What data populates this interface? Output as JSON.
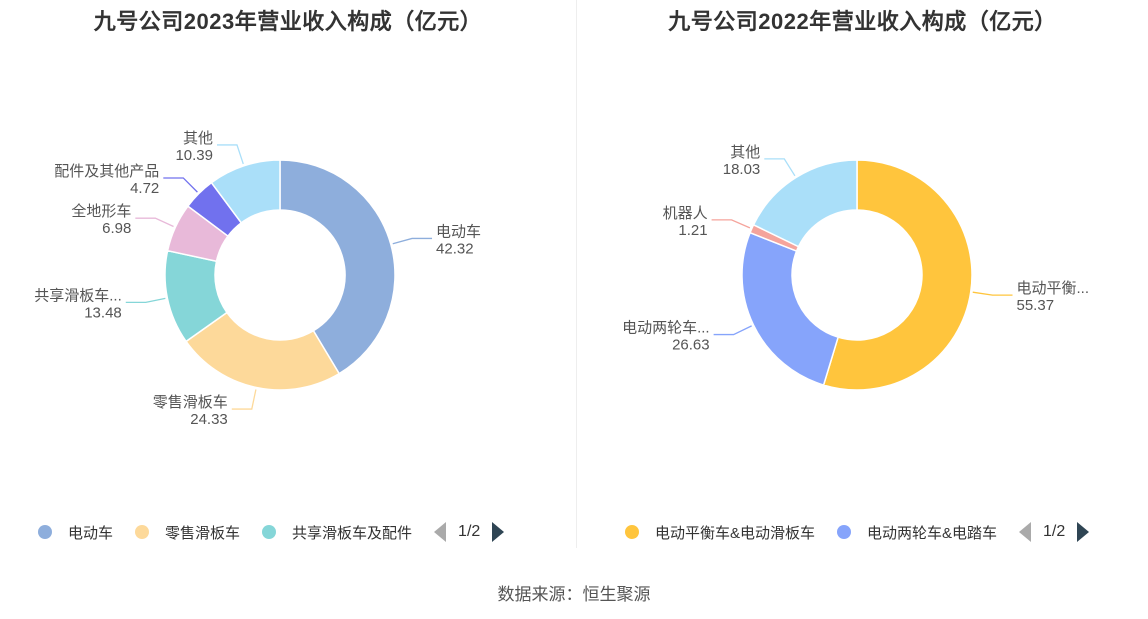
{
  "source_text": "数据来源：恒生聚源",
  "chart_data": [
    {
      "type": "pie",
      "donut": true,
      "title": "九号公司2023年营业收入构成（亿元）",
      "slices": [
        {
          "name": "电动车",
          "label": "电动车",
          "value": 42.32,
          "color": "#8eaedc"
        },
        {
          "name": "零售滑板车",
          "label": "零售滑板车",
          "value": 24.33,
          "color": "#fdd99a"
        },
        {
          "name": "共享滑板车及配件",
          "label": "共享滑板车...",
          "value": 13.48,
          "color": "#85d6d8"
        },
        {
          "name": "全地形车",
          "label": "全地形车",
          "value": 6.98,
          "color": "#e8b9d9"
        },
        {
          "name": "配件及其他产品",
          "label": "配件及其他产品",
          "value": 4.72,
          "color": "#7171ee"
        },
        {
          "name": "其他",
          "label": "其他",
          "value": 10.39,
          "color": "#aadff9"
        }
      ],
      "legend": {
        "position": "bottom",
        "visible_items": [
          "电动车",
          "零售滑板车",
          "共享滑板车及配件"
        ],
        "page": "1/2"
      }
    },
    {
      "type": "pie",
      "donut": true,
      "title": "九号公司2022年营业收入构成（亿元）",
      "slices": [
        {
          "name": "电动平衡车&电动滑板车",
          "label": "电动平衡...",
          "value": 55.37,
          "color": "#ffc53d"
        },
        {
          "name": "电动两轮车&电踏车",
          "label": "电动两轮车...",
          "value": 26.63,
          "color": "#86a4fb"
        },
        {
          "name": "机器人",
          "label": "机器人",
          "value": 1.21,
          "color": "#f5a49c"
        },
        {
          "name": "其他",
          "label": "其他",
          "value": 18.03,
          "color": "#aadff9"
        }
      ],
      "legend": {
        "position": "bottom",
        "visible_items": [
          "电动平衡车&电动滑板车",
          "电动两轮车&电踏车"
        ],
        "page": "1/2"
      }
    }
  ]
}
